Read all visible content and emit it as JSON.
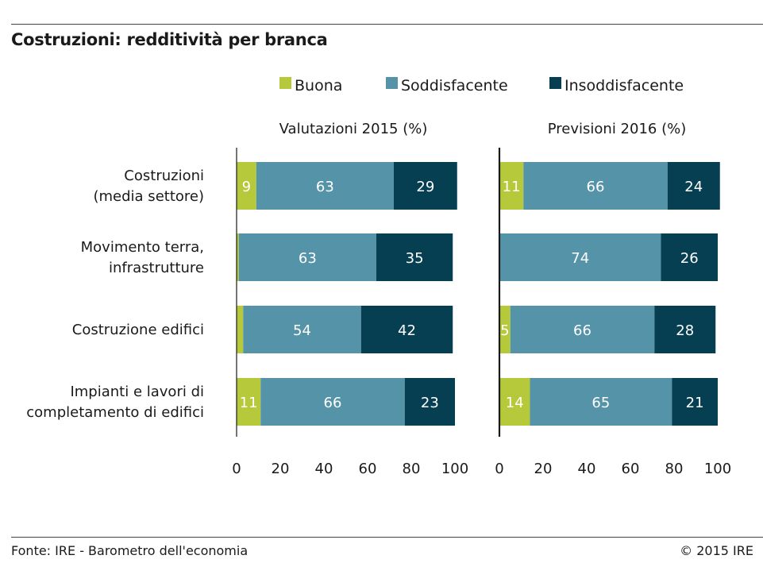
{
  "title": "Costruzioni: redditività per branca",
  "footer": {
    "source": "Fonte: IRE - Barometro dell'economia",
    "copyright": "© 2015 IRE"
  },
  "colors": {
    "Buona": "#b6c93b",
    "Soddisfacente": "#5593a8",
    "Insoddisfacente": "#073f52"
  },
  "chart_data": {
    "type": "bar",
    "orientation": "horizontal",
    "stacked": true,
    "categories": [
      [
        "Costruzioni",
        "(media settore)"
      ],
      [
        "Movimento terra,",
        "infrastrutture"
      ],
      [
        "Costruzione edifici"
      ],
      [
        "Impianti e lavori di",
        "completamento di edifici"
      ]
    ],
    "series_names": [
      "Buona",
      "Soddisfacente",
      "Insoddisfacente"
    ],
    "xlim": [
      0,
      100
    ],
    "ticks": [
      0,
      20,
      40,
      60,
      80,
      100
    ],
    "legend_position": "top",
    "panels": [
      {
        "title": "Valutazioni 2015 (%)",
        "series": [
          {
            "name": "Buona",
            "values": [
              9,
              1,
              3,
              11
            ],
            "labels": [
              "9",
              "",
              "",
              "11"
            ]
          },
          {
            "name": "Soddisfacente",
            "values": [
              63,
              63,
              54,
              66
            ],
            "labels": [
              "63",
              "63",
              "54",
              "66"
            ]
          },
          {
            "name": "Insoddisfacente",
            "values": [
              29,
              35,
              42,
              23
            ],
            "labels": [
              "29",
              "35",
              "42",
              "23"
            ]
          }
        ]
      },
      {
        "title": "Previsioni 2016 (%)",
        "series": [
          {
            "name": "Buona",
            "values": [
              11,
              0,
              5,
              14
            ],
            "labels": [
              "11",
              "",
              "5",
              "14"
            ]
          },
          {
            "name": "Soddisfacente",
            "values": [
              66,
              74,
              66,
              65
            ],
            "labels": [
              "66",
              "74",
              "66",
              "65"
            ]
          },
          {
            "name": "Insoddisfacente",
            "values": [
              24,
              26,
              28,
              21
            ],
            "labels": [
              "24",
              "26",
              "28",
              "21"
            ]
          }
        ]
      }
    ]
  }
}
